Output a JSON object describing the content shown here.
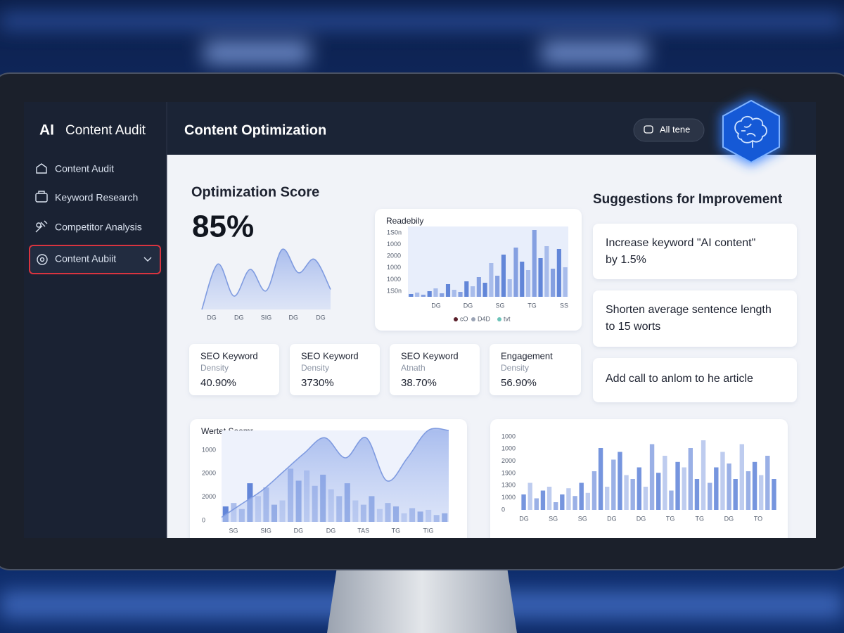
{
  "sidebar": {
    "logo": "AI",
    "brand": "Content Audit",
    "nav": [
      "Content Audit",
      "Keyword Research",
      "Competitor Analysis",
      "Content Aubiit"
    ]
  },
  "header": {
    "title": "Content Optimization",
    "button": "All tene"
  },
  "score": {
    "title": "Optimization Score",
    "value": "85%",
    "chart": {
      "values": [
        0,
        68,
        20,
        60,
        28,
        90,
        55,
        75,
        30
      ],
      "ylim": [
        0,
        100
      ],
      "color": "#7f9be0",
      "xlabels": [
        "DG",
        "DG",
        "SIG",
        "DG",
        "DG"
      ]
    }
  },
  "readability": {
    "title": "Readebily",
    "ylabels": [
      "1S0n",
      "1000",
      "2000",
      "1000",
      "1000",
      "1S0n"
    ],
    "xlabels": [
      "DG",
      "DG",
      "SG",
      "TG",
      "SS"
    ],
    "legend": [
      "cO",
      "D4D",
      "tvt"
    ],
    "legend_colors": [
      "#5a1f2a",
      "#9aa3b5",
      "#6cc3b8"
    ],
    "values": [
      4,
      6,
      3,
      8,
      12,
      5,
      18,
      10,
      7,
      22,
      15,
      28,
      20,
      48,
      30,
      60,
      25,
      70,
      50,
      38,
      95,
      55,
      72,
      40,
      68,
      42
    ],
    "ylim": [
      0,
      100
    ],
    "color": "#5b7fd6"
  },
  "metrics": [
    {
      "title": "SEO Keyword",
      "subtitle": "Density",
      "value": "40.90%"
    },
    {
      "title": "SEO Keyword",
      "subtitle": "Density",
      "value": "3730%"
    },
    {
      "title": "SEO Keyword",
      "subtitle": "Atnath",
      "value": "38.70%"
    },
    {
      "title": "Engagement",
      "subtitle": "Density",
      "value": "56.90%"
    }
  ],
  "suggestions": {
    "title": "Suggestions for Improvement",
    "items": [
      "Increase keyword \"AI content\" by 1.5%",
      "Shorten average sentence length to 15 worts",
      "Add call to anlom to he article"
    ]
  },
  "traffic": {
    "title": "Wertet Soomr",
    "ylabels": [
      "1000",
      "2000",
      "2000",
      "0"
    ],
    "xlabels": [
      "SG",
      "SIG",
      "DG",
      "DG",
      "TAS",
      "TG",
      "TIG"
    ],
    "values": [
      18,
      22,
      15,
      45,
      30,
      40,
      20,
      25,
      62,
      48,
      60,
      42,
      55,
      38,
      30,
      45,
      25,
      20,
      30,
      15,
      22,
      18,
      10,
      16,
      12,
      14,
      8,
      10
    ],
    "line": [
      5,
      20,
      35,
      55,
      75,
      92,
      70,
      92,
      45,
      70,
      100,
      100
    ],
    "ylim": [
      0,
      100
    ],
    "color": "#5b7fd6"
  },
  "bars": {
    "ylabels": [
      "1000",
      "1000",
      "2000",
      "1900",
      "1300",
      "1000",
      "0"
    ],
    "xlabels": [
      "DG",
      "SG",
      "SG",
      "DG",
      "DG",
      "TG",
      "TG",
      "DG",
      "TO"
    ],
    "values": [
      20,
      35,
      15,
      25,
      30,
      10,
      20,
      28,
      18,
      35,
      22,
      50,
      80,
      30,
      65,
      75,
      45,
      40,
      55,
      30,
      85,
      48,
      70,
      25,
      62,
      55,
      80,
      40,
      90,
      35,
      55,
      75,
      60,
      40,
      85,
      50,
      62,
      45,
      70,
      40
    ],
    "ylim": [
      0,
      100
    ],
    "color": "#6f8fdc"
  }
}
